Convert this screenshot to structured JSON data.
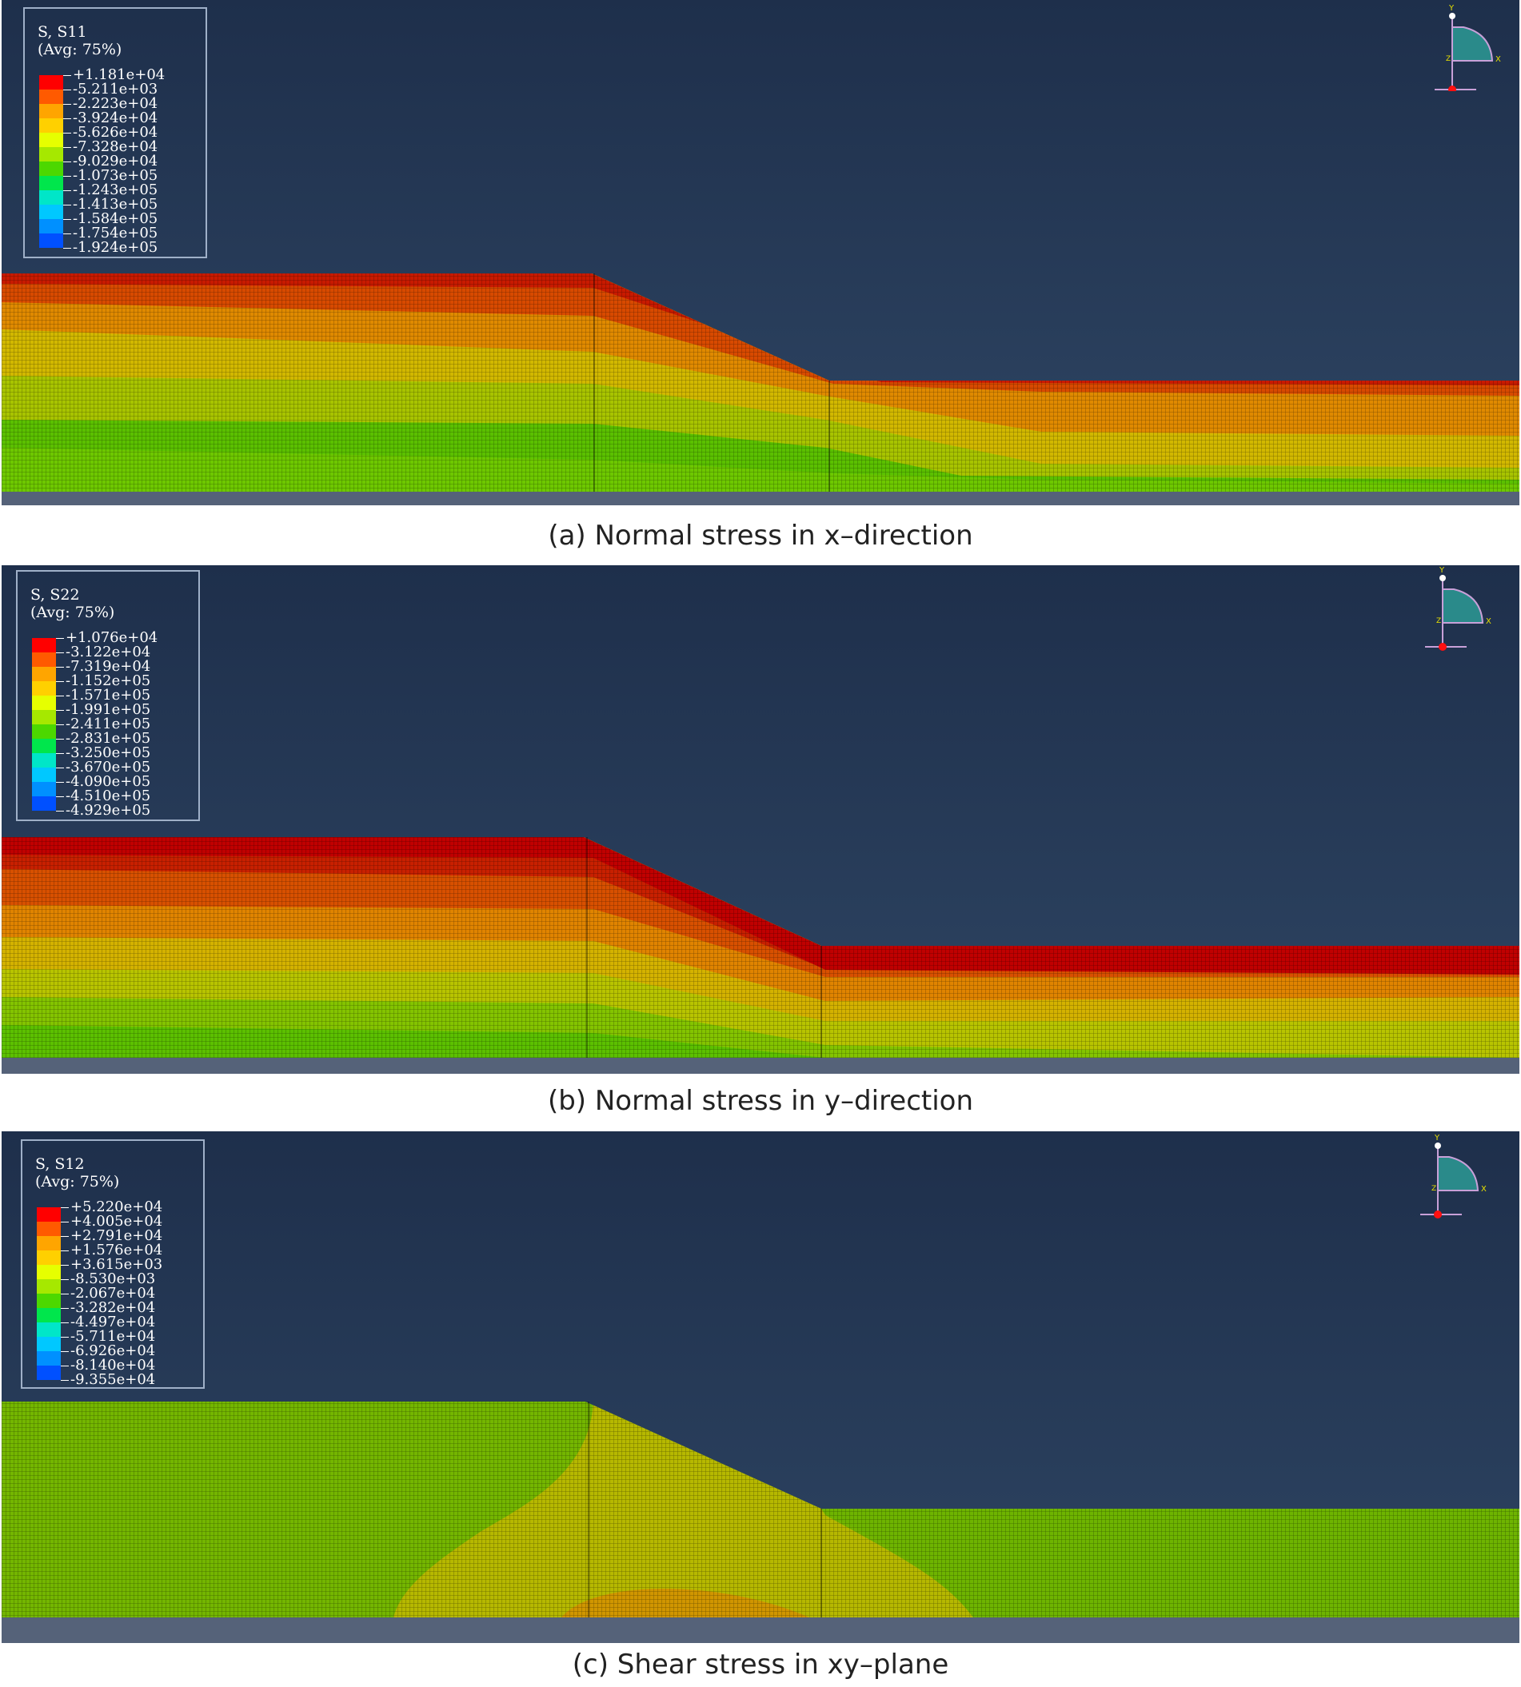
{
  "panels": [
    {
      "id": "a",
      "caption": "(a) Normal stress in x–direction",
      "legend": {
        "title_line1": "S, S11",
        "title_line2": "(Avg: 75%)",
        "values": [
          "+1.181e+04",
          "-5.211e+03",
          "-2.223e+04",
          "-3.924e+04",
          "-5.626e+04",
          "-7.328e+04",
          "-9.029e+04",
          "-1.073e+05",
          "-1.243e+05",
          "-1.413e+05",
          "-1.584e+05",
          "-1.754e+05",
          "-1.924e+05"
        ]
      },
      "triad": {
        "y_label": "Y",
        "x_label": "X",
        "z_label": "Z"
      }
    },
    {
      "id": "b",
      "caption": "(b) Normal stress in y–direction",
      "legend": {
        "title_line1": "S, S22",
        "title_line2": "(Avg: 75%)",
        "values": [
          "+1.076e+04",
          "-3.122e+04",
          "-7.319e+04",
          "-1.152e+05",
          "-1.571e+05",
          "-1.991e+05",
          "-2.411e+05",
          "-2.831e+05",
          "-3.250e+05",
          "-3.670e+05",
          "-4.090e+05",
          "-4.510e+05",
          "-4.929e+05"
        ]
      },
      "triad": {
        "y_label": "Y",
        "x_label": "X",
        "z_label": "Z"
      }
    },
    {
      "id": "c",
      "caption": "(c) Shear stress in xy–plane",
      "legend": {
        "title_line1": "S, S12",
        "title_line2": "(Avg: 75%)",
        "values": [
          "+5.220e+04",
          "+4.005e+04",
          "+2.791e+04",
          "+1.576e+04",
          "+3.615e+03",
          "-8.530e+03",
          "-2.067e+04",
          "-3.282e+04",
          "-4.497e+04",
          "-5.711e+04",
          "-6.926e+04",
          "-8.140e+04",
          "-9.355e+04"
        ]
      },
      "triad": {
        "y_label": "Y",
        "x_label": "X",
        "z_label": "Z"
      }
    }
  ],
  "colors": {
    "contour_scale": [
      "#ff0000",
      "#ff5a00",
      "#ffa500",
      "#ffd000",
      "#e6ff00",
      "#a6e800",
      "#4cd800",
      "#00e64c",
      "#00e6c8",
      "#00c8ff",
      "#0090ff",
      "#0050ff",
      "#0000ff"
    ],
    "background_top": "#1e2f4b",
    "background_bottom": "#2e4563",
    "ground_band": "#556279",
    "triad_fill": "#2a8a8a",
    "triad_axis": "#c8a0d8",
    "triad_origin": "#ff1010",
    "triad_label": "#e8e000"
  }
}
